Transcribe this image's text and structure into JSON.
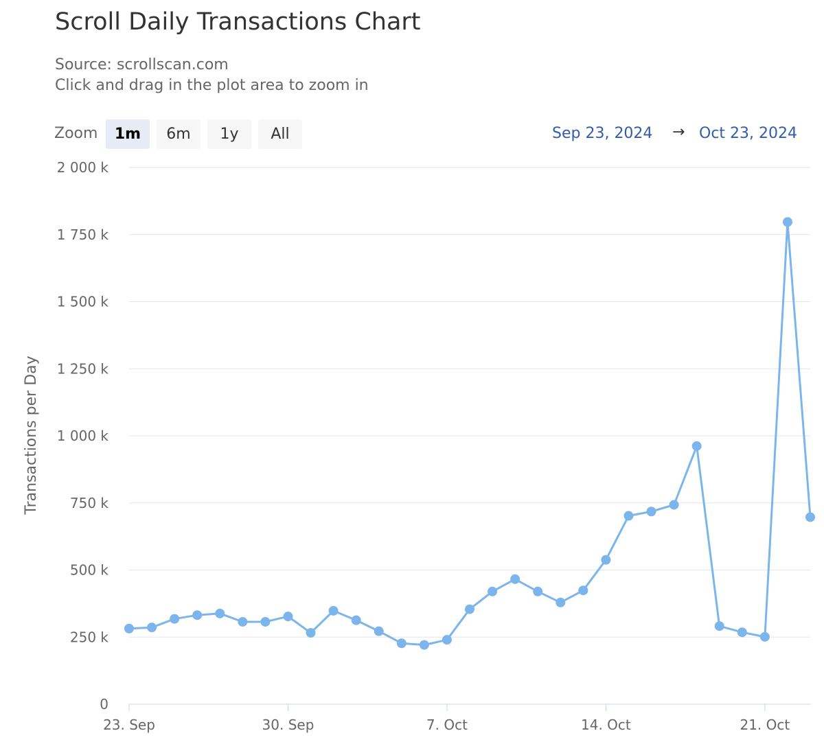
{
  "header": {
    "title": "Scroll Daily Transactions Chart",
    "source": "Source: scrollscan.com",
    "hint": "Click and drag in the plot area to zoom in"
  },
  "zoom": {
    "label": "Zoom",
    "buttons": [
      "1m",
      "6m",
      "1y",
      "All"
    ],
    "active": "1m"
  },
  "range": {
    "from": "Sep 23, 2024",
    "arrow": "→",
    "to": "Oct 23, 2024"
  },
  "chart_data": {
    "type": "line",
    "title": "Scroll Daily Transactions Chart",
    "ylabel": "Transactions per Day",
    "ylim": [
      0,
      2000000
    ],
    "y_ticks": [
      0,
      250000,
      500000,
      750000,
      1000000,
      1250000,
      1500000,
      1750000,
      2000000
    ],
    "y_tick_labels": [
      "0",
      "250 k",
      "500 k",
      "750 k",
      "1 000 k",
      "1 250 k",
      "1 500 k",
      "1 750 k",
      "2 000 k"
    ],
    "x_range": [
      "2024-09-23",
      "2024-10-23"
    ],
    "x_ticks": [
      "2024-09-23",
      "2024-09-30",
      "2024-10-07",
      "2024-10-14",
      "2024-10-21"
    ],
    "x_tick_labels": [
      "23. Sep",
      "30. Sep",
      "7. Oct",
      "14. Oct",
      "21. Oct"
    ],
    "grid": true,
    "line_color": "#7cb5ec",
    "series": [
      {
        "x": [
          "2024-09-23",
          "2024-09-24",
          "2024-09-25",
          "2024-09-26",
          "2024-09-27",
          "2024-09-28",
          "2024-09-29",
          "2024-09-30",
          "2024-10-01",
          "2024-10-02",
          "2024-10-03",
          "2024-10-04",
          "2024-10-05",
          "2024-10-06",
          "2024-10-07",
          "2024-10-08",
          "2024-10-09",
          "2024-10-10",
          "2024-10-11",
          "2024-10-12",
          "2024-10-13",
          "2024-10-14",
          "2024-10-15",
          "2024-10-16",
          "2024-10-17",
          "2024-10-18",
          "2024-10-19",
          "2024-10-20",
          "2024-10-21",
          "2024-10-22",
          "2024-10-23"
        ],
        "values": [
          282000,
          286000,
          318000,
          332000,
          338000,
          307000,
          307000,
          327000,
          266000,
          348000,
          313000,
          272000,
          227000,
          221000,
          240000,
          354000,
          420000,
          466000,
          420000,
          379000,
          424000,
          538000,
          702000,
          718000,
          743000,
          962000,
          291000,
          268000,
          251000,
          1797000,
          697000
        ]
      }
    ]
  }
}
